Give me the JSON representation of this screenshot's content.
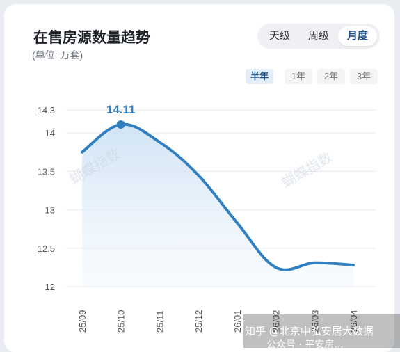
{
  "title": "在售房源数量趋势",
  "unit": "(单位: 万套)",
  "granularity": {
    "options": [
      "天级",
      "周级",
      "月度"
    ],
    "selected": "月度"
  },
  "ranges": {
    "options": [
      "半年",
      "1年",
      "2年",
      "3年"
    ],
    "selected": "半年"
  },
  "watermarks": [
    "蝴蝶指数",
    "蝴蝶指数"
  ],
  "footer": {
    "source_line": "知乎 @北京中弘安居大数据",
    "partial_line": "公众号 · 平安房..."
  },
  "colors": {
    "line": "#2f7fc1",
    "fill": "#d6e8f7",
    "accent": "#1b4f86"
  },
  "chart_data": {
    "type": "line",
    "categories": [
      "25/09",
      "25/10",
      "25/11",
      "25/12",
      "26/01",
      "26/02",
      "26/03",
      "26/04"
    ],
    "values": [
      13.75,
      14.11,
      13.88,
      13.45,
      12.83,
      12.25,
      12.31,
      12.28
    ],
    "highlight": {
      "category": "25/10",
      "value": 14.11,
      "label": "14.11"
    },
    "yticks": [
      "12",
      "12.5",
      "13",
      "13.5",
      "14",
      "14.3"
    ],
    "ylim": [
      12,
      14.3
    ],
    "grid": true
  }
}
